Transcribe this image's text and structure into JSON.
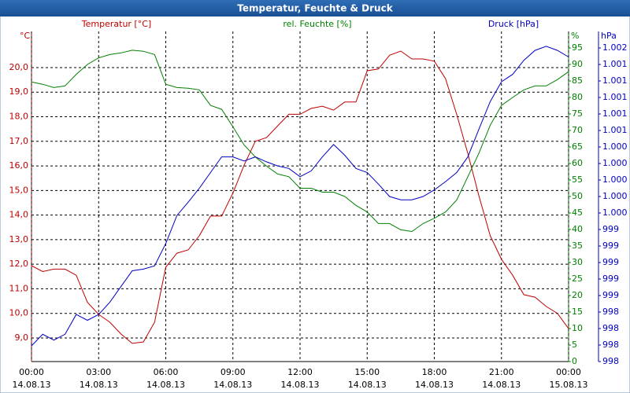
{
  "chart_data": {
    "type": "line",
    "title": "Temperatur, Feuchte & Druck",
    "ylabel": "Temperatur [°C]",
    "yunit": "°C",
    "y2label": "rel. Feuchte [%]",
    "y2unit": "%",
    "y3label": "Druck [hPa]",
    "y3unit": "hPa",
    "x": [
      0,
      0.5,
      1,
      1.5,
      2,
      2.5,
      3,
      3.5,
      4,
      4.5,
      5,
      5.5,
      6,
      6.5,
      7,
      7.5,
      8,
      8.5,
      9,
      9.5,
      10,
      10.5,
      11,
      11.5,
      12,
      12.5,
      13,
      13.5,
      14,
      14.5,
      15,
      15.5,
      16,
      16.5,
      17,
      17.5,
      18,
      18.5,
      19,
      19.5,
      20,
      20.5,
      21,
      21.5,
      22,
      22.5,
      23,
      23.5,
      24
    ],
    "xlim": [
      0,
      24
    ],
    "xticks": [
      {
        "value": 0,
        "label": "00:00"
      },
      {
        "value": 3,
        "label": "03:00"
      },
      {
        "value": 6,
        "label": "06:00"
      },
      {
        "value": 9,
        "label": "09:00"
      },
      {
        "value": 12,
        "label": "12:00"
      },
      {
        "value": 15,
        "label": "15:00"
      },
      {
        "value": 18,
        "label": "18:00"
      },
      {
        "value": 21,
        "label": "21:00"
      },
      {
        "value": 24,
        "label": "00:00"
      }
    ],
    "xtick_dates": [
      "14.08.13",
      "14.08.13",
      "14.08.13",
      "14.08.13",
      "14.08.13",
      "14.08.13",
      "14.08.13",
      "14.08.13",
      "15.08.13"
    ],
    "ylim": [
      8.04,
      21.47
    ],
    "yticks": [
      {
        "value": 9,
        "label": "9,0"
      },
      {
        "value": 10,
        "label": "10,0"
      },
      {
        "value": 11,
        "label": "11,0"
      },
      {
        "value": 12,
        "label": "12,0"
      },
      {
        "value": 13,
        "label": "13,0"
      },
      {
        "value": 14,
        "label": "14,0"
      },
      {
        "value": 15,
        "label": "15,0"
      },
      {
        "value": 16,
        "label": "16,0"
      },
      {
        "value": 17,
        "label": "17,0"
      },
      {
        "value": 18,
        "label": "18,0"
      },
      {
        "value": 19,
        "label": "19,0"
      },
      {
        "value": 20,
        "label": "20,0"
      }
    ],
    "y2lim": [
      0,
      100
    ],
    "y2ticks": [
      0,
      5,
      10,
      15,
      20,
      25,
      30,
      35,
      40,
      45,
      50,
      55,
      60,
      65,
      70,
      75,
      80,
      85,
      90,
      95
    ],
    "y3lim": [
      997.8,
      1001.8
    ],
    "y3ticks": [
      {
        "value": 997.8,
        "label": "998"
      },
      {
        "value": 998.0,
        "label": "998"
      },
      {
        "value": 998.2,
        "label": "998"
      },
      {
        "value": 998.4,
        "label": "998"
      },
      {
        "value": 998.6,
        "label": "999"
      },
      {
        "value": 998.8,
        "label": "999"
      },
      {
        "value": 999.0,
        "label": "999"
      },
      {
        "value": 999.2,
        "label": "999"
      },
      {
        "value": 999.4,
        "label": "999"
      },
      {
        "value": 999.6,
        "label": "1.000"
      },
      {
        "value": 999.8,
        "label": "1.000"
      },
      {
        "value": 1000.0,
        "label": "1.000"
      },
      {
        "value": 1000.2,
        "label": "1.000"
      },
      {
        "value": 1000.4,
        "label": "1.000"
      },
      {
        "value": 1000.6,
        "label": "1.001"
      },
      {
        "value": 1000.8,
        "label": "1.001"
      },
      {
        "value": 1001.0,
        "label": "1.001"
      },
      {
        "value": 1001.2,
        "label": "1.001"
      },
      {
        "value": 1001.4,
        "label": "1.001"
      },
      {
        "value": 1001.6,
        "label": "1.002"
      }
    ],
    "grid": true,
    "series": [
      {
        "name": "Temperatur",
        "color": "#c00000",
        "axis": "y",
        "values": [
          11.94,
          11.7,
          11.8,
          11.8,
          11.55,
          10.45,
          9.96,
          9.64,
          9.16,
          8.78,
          8.84,
          9.64,
          11.88,
          12.45,
          12.58,
          13.16,
          13.96,
          13.96,
          14.9,
          16.03,
          17.0,
          17.15,
          17.63,
          18.1,
          18.1,
          18.34,
          18.43,
          18.27,
          18.6,
          18.6,
          19.87,
          19.94,
          20.5,
          20.67,
          20.35,
          20.35,
          20.26,
          19.55,
          18.1,
          16.5,
          14.76,
          13.16,
          12.2,
          11.55,
          10.76,
          10.66,
          10.28,
          10.0,
          9.38
        ]
      },
      {
        "name": "rel. Feuchte",
        "color": "#008000",
        "axis": "y2",
        "values": [
          84.7,
          84,
          83,
          83.5,
          87,
          90,
          92,
          93,
          93.5,
          94.3,
          94,
          93,
          84,
          83,
          82.8,
          82.3,
          77.6,
          76.4,
          71.1,
          65.6,
          62,
          59.2,
          56.8,
          56,
          52.5,
          52.5,
          51.3,
          51.3,
          50,
          47.3,
          45.3,
          41.8,
          41.8,
          39.9,
          39.4,
          41.8,
          43.4,
          45.3,
          48.9,
          56,
          63.2,
          71.6,
          77.6,
          80,
          82.3,
          83.5,
          83.5,
          85.4,
          87.8
        ]
      },
      {
        "name": "Druck",
        "color": "#0000c0",
        "axis": "y3",
        "values": [
          997.99,
          998.13,
          998.06,
          998.13,
          998.37,
          998.3,
          998.37,
          998.52,
          998.71,
          998.9,
          998.92,
          998.96,
          999.23,
          999.57,
          999.73,
          999.9,
          1000.09,
          1000.28,
          1000.28,
          1000.23,
          1000.28,
          1000.22,
          1000.17,
          1000.14,
          1000.04,
          1000.11,
          1000.28,
          1000.43,
          1000.3,
          1000.14,
          1000.09,
          999.95,
          999.8,
          999.76,
          999.76,
          999.8,
          999.88,
          999.98,
          1000.09,
          1000.28,
          1000.62,
          1000.95,
          1001.19,
          1001.28,
          1001.45,
          1001.57,
          1001.62,
          1001.57,
          1001.49
        ]
      }
    ]
  }
}
